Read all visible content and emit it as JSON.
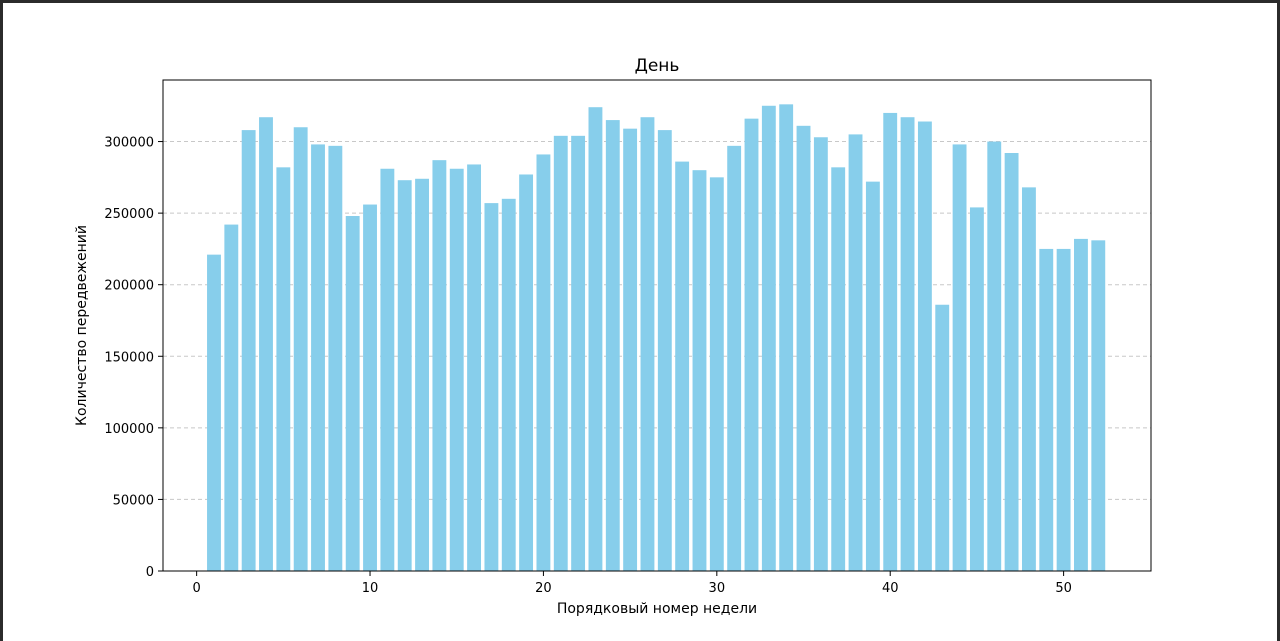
{
  "chart_data": {
    "type": "bar",
    "title": "День",
    "xlabel": "Порядковый номер недели",
    "ylabel": "Количество передвежений",
    "x": [
      1,
      2,
      3,
      4,
      5,
      6,
      7,
      8,
      9,
      10,
      11,
      12,
      13,
      14,
      15,
      16,
      17,
      18,
      19,
      20,
      21,
      22,
      23,
      24,
      25,
      26,
      27,
      28,
      29,
      30,
      31,
      32,
      33,
      34,
      35,
      36,
      37,
      38,
      39,
      40,
      41,
      42,
      43,
      44,
      45,
      46,
      47,
      48,
      49,
      50,
      51,
      52
    ],
    "values": [
      221000,
      242000,
      308000,
      317000,
      282000,
      310000,
      298000,
      297000,
      248000,
      256000,
      281000,
      273000,
      274000,
      287000,
      281000,
      284000,
      257000,
      260000,
      277000,
      291000,
      304000,
      304000,
      324000,
      315000,
      309000,
      317000,
      308000,
      286000,
      280000,
      275000,
      297000,
      316000,
      325000,
      326000,
      311000,
      303000,
      282000,
      305000,
      272000,
      320000,
      317000,
      314000,
      186000,
      298000,
      254000,
      300000,
      292000,
      268000,
      225000,
      225000,
      232000,
      231000
    ],
    "xticks": [
      0,
      10,
      20,
      30,
      40,
      50
    ],
    "yticks": [
      0,
      50000,
      100000,
      150000,
      200000,
      250000,
      300000
    ],
    "xlim": [
      -1.94,
      55.04
    ],
    "ylim": [
      0,
      343000
    ],
    "grid": "y-dashed",
    "bar_color": "#87ceeb"
  }
}
